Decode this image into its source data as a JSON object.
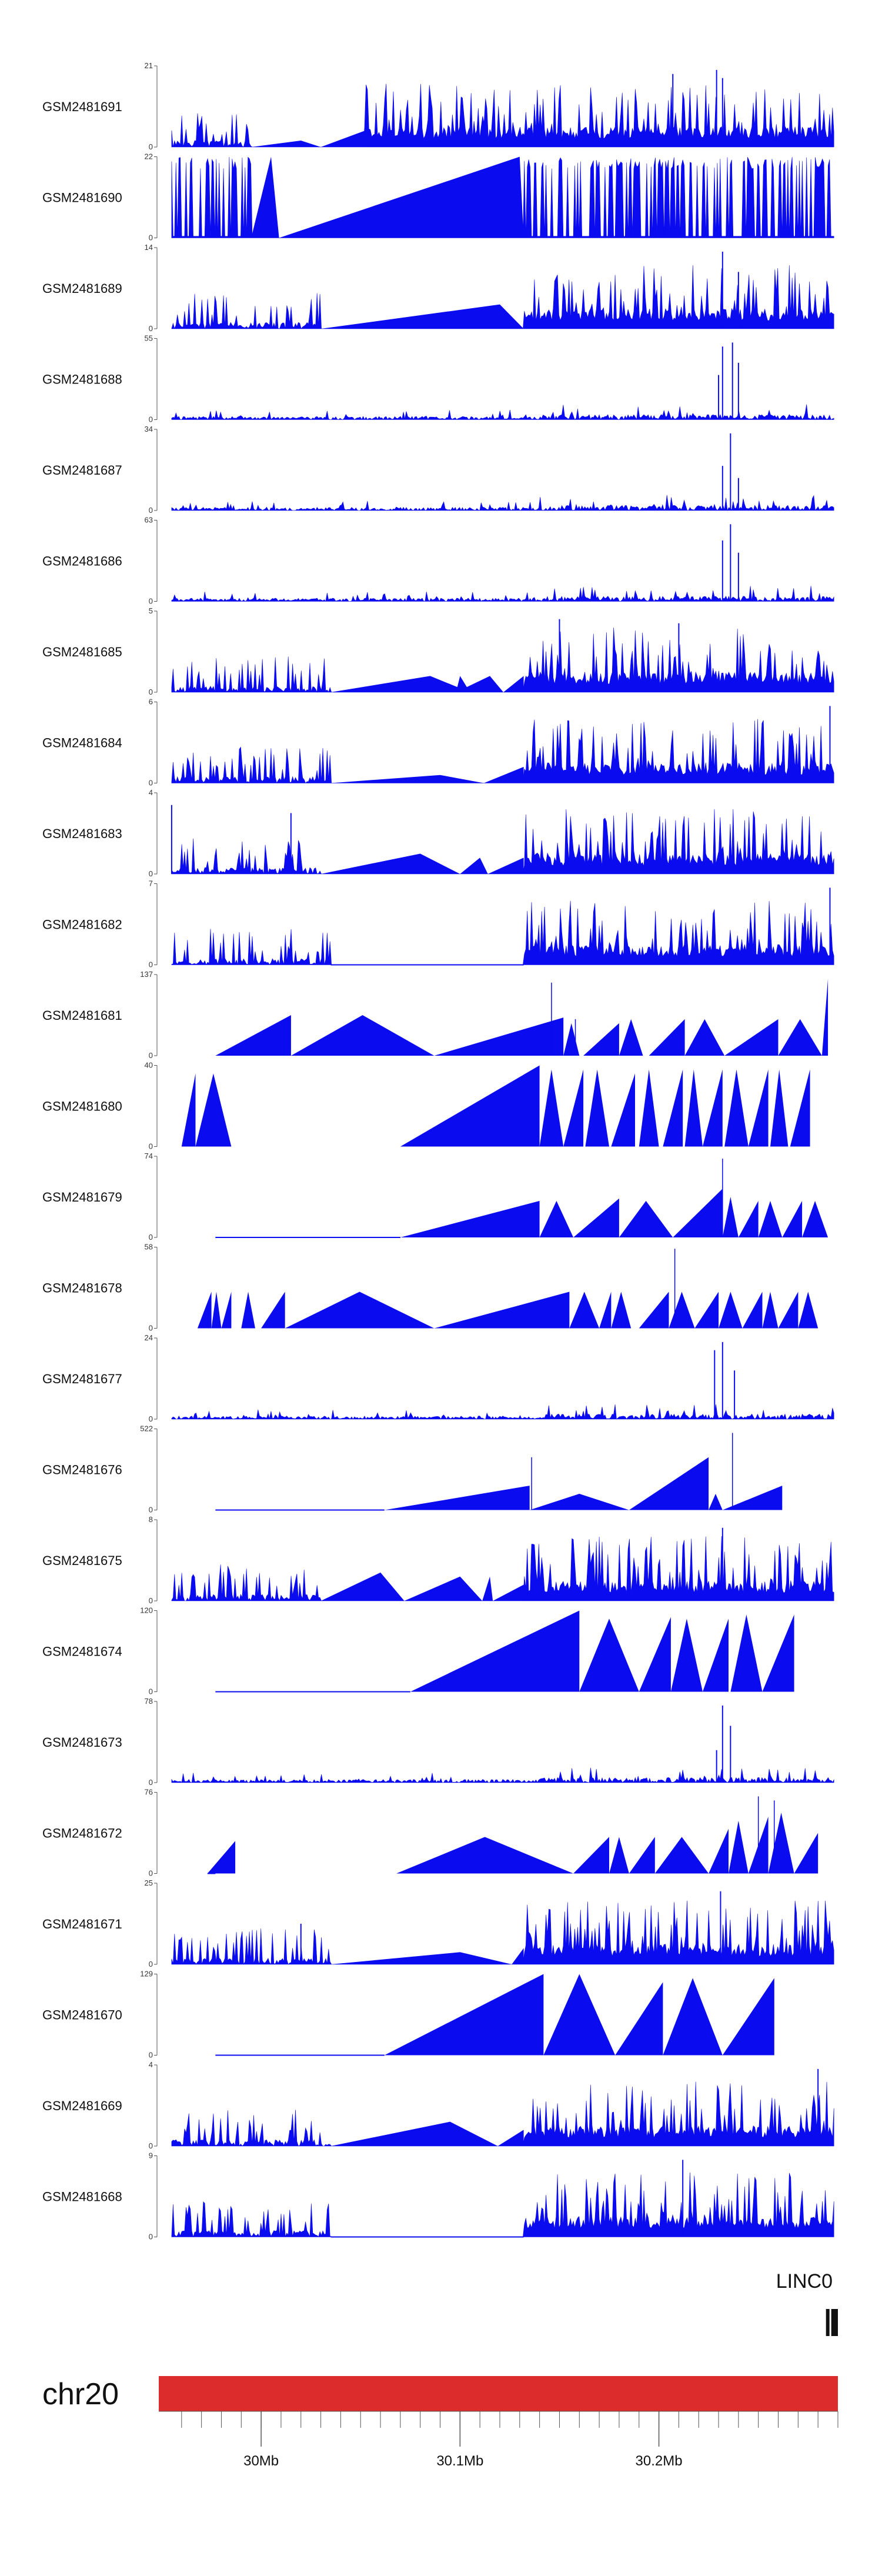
{
  "chart_data": {
    "type": "area",
    "title": "",
    "genome_axis": {
      "chromosome": "chr20",
      "unit": "Mb",
      "xlim": [
        29.95,
        30.29
      ],
      "ticks": [
        {
          "pos": 30.0,
          "label": "30Mb"
        },
        {
          "pos": 30.1,
          "label": "30.1Mb"
        },
        {
          "pos": 30.2,
          "label": "30.2Mb"
        }
      ],
      "minor_tick_step": 0.01
    },
    "gene": {
      "label": "LINC0",
      "start": 30.284,
      "end": 30.29
    },
    "colors": {
      "signal": "#0b0bf0",
      "chromosome_bar": "#dd2c2c",
      "axis": "#555555"
    },
    "series": [
      {
        "name": "GSM2481691",
        "ymax": 21,
        "ymin": 0,
        "style": "dense",
        "gap": [
          29.995,
          30.052
        ],
        "gapPeaks": [
          [
            30.02,
            0.08
          ]
        ],
        "seed": 11,
        "peaks": [
          [
            30.207,
            0.9
          ],
          [
            30.229,
            0.95
          ],
          [
            30.232,
            0.85
          ]
        ]
      },
      {
        "name": "GSM2481690",
        "ymax": 22,
        "ymin": 0,
        "style": "spiky",
        "gap": [
          29.995,
          30.132
        ],
        "gapPeaks": [
          [
            30.005,
            1.0
          ],
          [
            30.13,
            1.0
          ]
        ],
        "seed": 12,
        "peaks": []
      },
      {
        "name": "GSM2481689",
        "ymax": 14,
        "ymin": 0,
        "style": "dense",
        "gap": [
          30.03,
          30.132
        ],
        "gapPeaks": [
          [
            30.12,
            0.3
          ]
        ],
        "seed": 13,
        "peaks": [
          [
            30.232,
            0.95
          ],
          [
            30.24,
            0.7
          ]
        ]
      },
      {
        "name": "GSM2481688",
        "ymax": 55,
        "ymin": 0,
        "style": "low",
        "gap": [],
        "gapPeaks": [],
        "seed": 14,
        "peaks": [
          [
            30.232,
            0.9
          ],
          [
            30.237,
            0.95
          ],
          [
            30.24,
            0.7
          ],
          [
            30.23,
            0.55
          ]
        ]
      },
      {
        "name": "GSM2481687",
        "ymax": 34,
        "ymin": 0,
        "style": "low",
        "gap": [],
        "gapPeaks": [],
        "seed": 15,
        "peaks": [
          [
            30.236,
            0.95
          ],
          [
            30.232,
            0.55
          ],
          [
            30.24,
            0.4
          ]
        ]
      },
      {
        "name": "GSM2481686",
        "ymax": 63,
        "ymin": 0,
        "style": "low",
        "gap": [],
        "gapPeaks": [],
        "seed": 16,
        "peaks": [
          [
            30.232,
            0.75
          ],
          [
            30.236,
            0.95
          ],
          [
            30.24,
            0.6
          ]
        ]
      },
      {
        "name": "GSM2481685",
        "ymax": 5,
        "ymin": 0,
        "style": "dense",
        "gap": [
          30.035,
          30.132
        ],
        "gapPeaks": [
          [
            30.085,
            0.2
          ],
          [
            30.1,
            0.2
          ],
          [
            30.115,
            0.2
          ]
        ],
        "seed": 17,
        "peaks": [
          [
            30.15,
            0.9
          ],
          [
            30.21,
            0.85
          ]
        ]
      },
      {
        "name": "GSM2481684",
        "ymax": 6,
        "ymin": 0,
        "style": "dense",
        "gap": [
          30.035,
          30.132
        ],
        "gapPeaks": [
          [
            30.09,
            0.1
          ]
        ],
        "seed": 18,
        "peaks": [
          [
            30.286,
            0.95
          ]
        ]
      },
      {
        "name": "GSM2481683",
        "ymax": 4,
        "ymin": 0,
        "style": "dense",
        "gap": [
          30.03,
          30.132
        ],
        "gapPeaks": [
          [
            30.08,
            0.25
          ],
          [
            30.11,
            0.2
          ]
        ],
        "seed": 19,
        "peaks": [
          [
            29.955,
            0.85
          ],
          [
            30.015,
            0.75
          ]
        ]
      },
      {
        "name": "GSM2481682",
        "ymax": 7,
        "ymin": 0,
        "style": "dense",
        "gap": [
          30.035,
          30.132
        ],
        "gapPeaks": [],
        "seed": 20,
        "peaks": [
          [
            30.286,
            0.95
          ]
        ]
      },
      {
        "name": "GSM2481681",
        "ymax": 137,
        "ymin": 0,
        "style": "sparse",
        "gap": [],
        "gapPeaks": [],
        "seed": 21,
        "peaks": [
          [
            30.146,
            0.9
          ],
          [
            30.158,
            0.45
          ]
        ]
      },
      {
        "name": "GSM2481680",
        "ymax": 40,
        "ymin": 0,
        "style": "sparse",
        "gap": [],
        "gapPeaks": [],
        "seed": 22,
        "peaks": []
      },
      {
        "name": "GSM2481679",
        "ymax": 74,
        "ymin": 0,
        "style": "sparse",
        "gap": [],
        "gapPeaks": [],
        "seed": 23,
        "peaks": [
          [
            30.232,
            0.97
          ]
        ]
      },
      {
        "name": "GSM2481678",
        "ymax": 58,
        "ymin": 0,
        "style": "sparse",
        "gap": [],
        "gapPeaks": [],
        "seed": 24,
        "peaks": [
          [
            30.208,
            0.98
          ]
        ]
      },
      {
        "name": "GSM2481677",
        "ymax": 24,
        "ymin": 0,
        "style": "low",
        "gap": [],
        "gapPeaks": [],
        "seed": 25,
        "peaks": [
          [
            30.228,
            0.85
          ],
          [
            30.232,
            0.95
          ],
          [
            30.238,
            0.6
          ]
        ]
      },
      {
        "name": "GSM2481676",
        "ymax": 522,
        "ymin": 0,
        "style": "sparse",
        "gap": [],
        "gapPeaks": [],
        "seed": 26,
        "peaks": [
          [
            30.136,
            0.65
          ],
          [
            30.237,
            0.95
          ]
        ]
      },
      {
        "name": "GSM2481675",
        "ymax": 8,
        "ymin": 0,
        "style": "dense",
        "gap": [
          30.03,
          30.132
        ],
        "gapPeaks": [
          [
            30.06,
            0.35
          ],
          [
            30.1,
            0.3
          ],
          [
            30.115,
            0.3
          ]
        ],
        "seed": 27,
        "peaks": [
          [
            30.232,
            0.9
          ]
        ]
      },
      {
        "name": "GSM2481674",
        "ymax": 120,
        "ymin": 0,
        "style": "sparse",
        "gap": [],
        "gapPeaks": [],
        "seed": 28,
        "peaks": []
      },
      {
        "name": "GSM2481673",
        "ymax": 78,
        "ymin": 0,
        "style": "low",
        "gap": [],
        "gapPeaks": [],
        "seed": 29,
        "peaks": [
          [
            30.232,
            0.95
          ],
          [
            30.236,
            0.7
          ],
          [
            30.229,
            0.4
          ]
        ]
      },
      {
        "name": "GSM2481672",
        "ymax": 76,
        "ymin": 0,
        "style": "sparse",
        "gap": [],
        "gapPeaks": [],
        "seed": 30,
        "peaks": [
          [
            30.25,
            0.95
          ],
          [
            30.258,
            0.9
          ]
        ]
      },
      {
        "name": "GSM2481671",
        "ymax": 25,
        "ymin": 0,
        "style": "dense",
        "gap": [
          30.035,
          30.132
        ],
        "gapPeaks": [
          [
            30.1,
            0.15
          ]
        ],
        "seed": 31,
        "peaks": [
          [
            30.231,
            0.9
          ],
          [
            30.02,
            0.5
          ]
        ]
      },
      {
        "name": "GSM2481670",
        "ymax": 129,
        "ymin": 0,
        "style": "sparse",
        "gap": [],
        "gapPeaks": [],
        "seed": 32,
        "peaks": []
      },
      {
        "name": "GSM2481669",
        "ymax": 4,
        "ymin": 0,
        "style": "dense",
        "gap": [
          30.035,
          30.132
        ],
        "gapPeaks": [
          [
            30.095,
            0.3
          ]
        ],
        "seed": 33,
        "peaks": [
          [
            30.28,
            0.95
          ]
        ]
      },
      {
        "name": "GSM2481668",
        "ymax": 9,
        "ymin": 0,
        "style": "dense",
        "gap": [
          30.035,
          30.132
        ],
        "gapPeaks": [],
        "seed": 34,
        "peaks": [
          [
            30.212,
            0.95
          ]
        ]
      }
    ],
    "sparse_triangles": {
      "GSM2481681": [
        [
          29.977,
          30.015,
          0.5
        ],
        [
          30.015,
          30.087,
          0.5
        ],
        [
          30.087,
          30.152,
          0.47
        ],
        [
          30.152,
          30.16,
          0.4
        ],
        [
          30.162,
          30.18,
          0.4
        ],
        [
          30.18,
          30.192,
          0.45
        ],
        [
          30.195,
          30.213,
          0.45
        ],
        [
          30.213,
          30.233,
          0.45
        ],
        [
          30.233,
          30.26,
          0.45
        ],
        [
          30.26,
          30.282,
          0.45
        ],
        [
          30.282,
          30.285,
          0.95
        ]
      ],
      "GSM2481680": [
        [
          29.96,
          29.967,
          0.9
        ],
        [
          29.967,
          29.985,
          0.9
        ],
        [
          30.07,
          30.14,
          1.0
        ],
        [
          30.14,
          30.152,
          0.95
        ],
        [
          30.152,
          30.162,
          0.95
        ],
        [
          30.163,
          30.175,
          0.95
        ],
        [
          30.176,
          30.188,
          0.9
        ],
        [
          30.19,
          30.2,
          0.95
        ],
        [
          30.202,
          30.212,
          0.95
        ],
        [
          30.213,
          30.222,
          0.95
        ],
        [
          30.222,
          30.232,
          0.95
        ],
        [
          30.233,
          30.245,
          0.95
        ],
        [
          30.245,
          30.255,
          0.95
        ],
        [
          30.256,
          30.265,
          0.95
        ],
        [
          30.266,
          30.276,
          0.95
        ]
      ],
      "GSM2481679": [
        [
          30.07,
          30.14,
          0.45
        ],
        [
          30.14,
          30.157,
          0.45
        ],
        [
          30.157,
          30.18,
          0.48
        ],
        [
          30.18,
          30.207,
          0.45
        ],
        [
          30.207,
          30.232,
          0.6
        ],
        [
          30.232,
          30.24,
          0.5
        ],
        [
          30.24,
          30.25,
          0.45
        ],
        [
          30.25,
          30.262,
          0.45
        ],
        [
          30.262,
          30.272,
          0.45
        ],
        [
          30.272,
          30.285,
          0.45
        ]
      ],
      "GSM2481678": [
        [
          29.968,
          29.975,
          0.45
        ],
        [
          29.975,
          29.98,
          0.45
        ],
        [
          29.98,
          29.985,
          0.45
        ],
        [
          29.99,
          29.997,
          0.45
        ],
        [
          30.0,
          30.012,
          0.45
        ],
        [
          30.012,
          30.087,
          0.45
        ],
        [
          30.087,
          30.155,
          0.45
        ],
        [
          30.155,
          30.17,
          0.45
        ],
        [
          30.17,
          30.176,
          0.45
        ],
        [
          30.176,
          30.186,
          0.45
        ],
        [
          30.19,
          30.205,
          0.45
        ],
        [
          30.205,
          30.218,
          0.45
        ],
        [
          30.218,
          30.23,
          0.45
        ],
        [
          30.23,
          30.242,
          0.45
        ],
        [
          30.242,
          30.252,
          0.45
        ],
        [
          30.252,
          30.26,
          0.45
        ],
        [
          30.26,
          30.27,
          0.45
        ],
        [
          30.27,
          30.28,
          0.45
        ]
      ],
      "GSM2481676": [
        [
          30.062,
          30.135,
          0.3
        ],
        [
          30.135,
          30.185,
          0.2
        ],
        [
          30.185,
          30.225,
          0.65
        ],
        [
          30.225,
          30.232,
          0.2
        ],
        [
          30.232,
          30.262,
          0.3
        ]
      ],
      "GSM2481674": [
        [
          30.075,
          30.16,
          1.0
        ],
        [
          30.16,
          30.19,
          0.9
        ],
        [
          30.19,
          30.206,
          0.92
        ],
        [
          30.206,
          30.222,
          0.9
        ],
        [
          30.222,
          30.235,
          0.9
        ],
        [
          30.236,
          30.252,
          0.95
        ],
        [
          30.252,
          30.268,
          0.95
        ]
      ],
      "GSM2481672": [
        [
          29.973,
          29.987,
          0.4
        ],
        [
          30.068,
          30.157,
          0.45
        ],
        [
          30.157,
          30.175,
          0.45
        ],
        [
          30.175,
          30.185,
          0.45
        ],
        [
          30.185,
          30.198,
          0.45
        ],
        [
          30.198,
          30.225,
          0.45
        ],
        [
          30.225,
          30.235,
          0.55
        ],
        [
          30.235,
          30.245,
          0.65
        ],
        [
          30.245,
          30.255,
          0.7
        ],
        [
          30.255,
          30.268,
          0.75
        ],
        [
          30.268,
          30.28,
          0.5
        ]
      ],
      "GSM2481670": [
        [
          30.062,
          30.142,
          1.0
        ],
        [
          30.142,
          30.178,
          1.0
        ],
        [
          30.178,
          30.202,
          0.9
        ],
        [
          30.202,
          30.232,
          0.95
        ],
        [
          30.232,
          30.258,
          0.95
        ]
      ]
    }
  }
}
